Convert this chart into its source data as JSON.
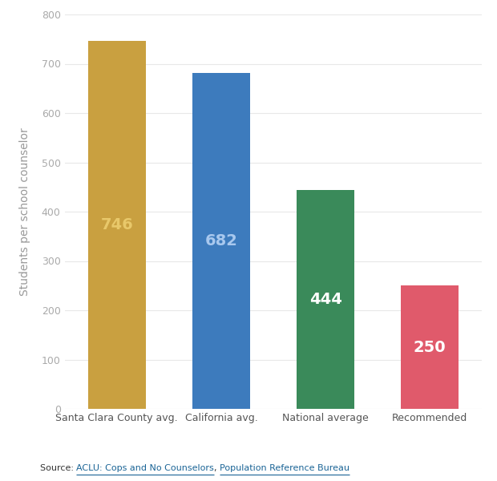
{
  "categories": [
    "Santa Clara County avg.",
    "California avg.",
    "National average",
    "Recommended"
  ],
  "values": [
    746,
    682,
    444,
    250
  ],
  "bar_colors": [
    "#C9A040",
    "#3D7BBD",
    "#3A8A5A",
    "#E05A6B"
  ],
  "value_label_colors": [
    "#E8C86A",
    "#A8C8EE",
    "#FFFFFF",
    "#FFFFFF"
  ],
  "ylabel": "Students per school counselor",
  "ylim": [
    0,
    800
  ],
  "yticks": [
    0,
    100,
    200,
    300,
    400,
    500,
    600,
    700,
    800
  ],
  "value_label_fontsize": 14,
  "tick_label_fontsize": 9,
  "ylabel_fontsize": 10,
  "ytick_label_color": "#AAAAAA",
  "xtick_label_color": "#555555",
  "source_prefix": "Source: ",
  "source_link1": "ACLU: Cops and No Counselors",
  "source_sep": ", ",
  "source_link2": "Population Reference Bureau",
  "link_color": "#1a6496",
  "source_color": "#333333",
  "background_color": "#FFFFFF",
  "grid_color": "#E8E8E8",
  "bar_width": 0.55
}
